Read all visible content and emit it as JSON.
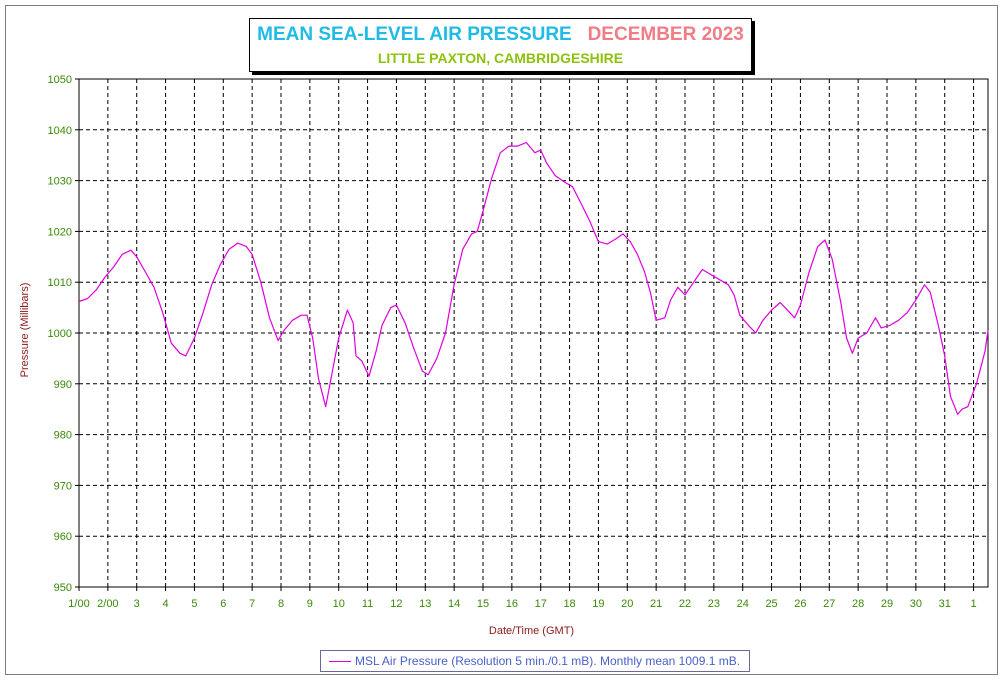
{
  "header": {
    "title": "MEAN SEA-LEVEL AIR PRESSURE",
    "month": "DECEMBER 2023",
    "subtitle": "LITTLE PAXTON, CAMBRIDGESHIRE"
  },
  "colors": {
    "title": "#1fbbe6",
    "month": "#f07c86",
    "subtitle": "#8cc20c",
    "axis_text": "#3a8a0a",
    "axis_title": "#8b1a1a",
    "series": "#e000e0",
    "grid": "#000000",
    "legend_text": "#4a60cc"
  },
  "chart_data": {
    "type": "line",
    "title": "MEAN SEA-LEVEL AIR PRESSURE  DECEMBER 2023",
    "xlabel": "Date/Time (GMT)",
    "ylabel": "Pressure (Millibars)",
    "ylim": [
      950,
      1050
    ],
    "xlim": [
      1,
      32.5
    ],
    "y_ticks": [
      950,
      960,
      970,
      980,
      990,
      1000,
      1010,
      1020,
      1030,
      1040,
      1050
    ],
    "x_ticks": [
      {
        "x": 1,
        "label": "1/00"
      },
      {
        "x": 2,
        "label": "2/00"
      },
      {
        "x": 3,
        "label": "3"
      },
      {
        "x": 4,
        "label": "4"
      },
      {
        "x": 5,
        "label": "5"
      },
      {
        "x": 6,
        "label": "6"
      },
      {
        "x": 7,
        "label": "7"
      },
      {
        "x": 8,
        "label": "8"
      },
      {
        "x": 9,
        "label": "9"
      },
      {
        "x": 10,
        "label": "10"
      },
      {
        "x": 11,
        "label": "11"
      },
      {
        "x": 12,
        "label": "12"
      },
      {
        "x": 13,
        "label": "13"
      },
      {
        "x": 14,
        "label": "14"
      },
      {
        "x": 15,
        "label": "15"
      },
      {
        "x": 16,
        "label": "16"
      },
      {
        "x": 17,
        "label": "17"
      },
      {
        "x": 18,
        "label": "18"
      },
      {
        "x": 19,
        "label": "19"
      },
      {
        "x": 20,
        "label": "20"
      },
      {
        "x": 21,
        "label": "21"
      },
      {
        "x": 22,
        "label": "22"
      },
      {
        "x": 23,
        "label": "23"
      },
      {
        "x": 24,
        "label": "24"
      },
      {
        "x": 25,
        "label": "25"
      },
      {
        "x": 26,
        "label": "26"
      },
      {
        "x": 27,
        "label": "27"
      },
      {
        "x": 28,
        "label": "28"
      },
      {
        "x": 29,
        "label": "29"
      },
      {
        "x": 30,
        "label": "30"
      },
      {
        "x": 31,
        "label": "31"
      },
      {
        "x": 32,
        "label": "1"
      }
    ],
    "grid": true,
    "legend_position": "bottom",
    "series": [
      {
        "name": "MSL Air Pressure (Resolution 5 min./0.1 mB). Monthly mean 1009.1 mB.",
        "points": [
          [
            1.0,
            1006.2
          ],
          [
            1.3,
            1006.8
          ],
          [
            1.6,
            1008.5
          ],
          [
            1.9,
            1011.0
          ],
          [
            2.2,
            1013.0
          ],
          [
            2.5,
            1015.5
          ],
          [
            2.8,
            1016.3
          ],
          [
            3.0,
            1015.0
          ],
          [
            3.3,
            1012.0
          ],
          [
            3.6,
            1009.0
          ],
          [
            3.9,
            1004.0
          ],
          [
            4.2,
            998.0
          ],
          [
            4.5,
            996.0
          ],
          [
            4.7,
            995.5
          ],
          [
            5.0,
            999.0
          ],
          [
            5.3,
            1004.0
          ],
          [
            5.6,
            1009.5
          ],
          [
            5.9,
            1013.5
          ],
          [
            6.2,
            1016.5
          ],
          [
            6.5,
            1017.7
          ],
          [
            6.8,
            1017.0
          ],
          [
            7.0,
            1015.5
          ],
          [
            7.3,
            1010.0
          ],
          [
            7.6,
            1003.0
          ],
          [
            7.9,
            998.5
          ],
          [
            8.1,
            1000.5
          ],
          [
            8.4,
            1002.5
          ],
          [
            8.7,
            1003.5
          ],
          [
            8.9,
            1003.5
          ],
          [
            9.1,
            999.0
          ],
          [
            9.3,
            991.0
          ],
          [
            9.55,
            985.5
          ],
          [
            9.8,
            993.0
          ],
          [
            10.0,
            999.0
          ],
          [
            10.3,
            1004.5
          ],
          [
            10.5,
            1002.0
          ],
          [
            10.6,
            995.5
          ],
          [
            10.8,
            994.5
          ],
          [
            11.05,
            991.5
          ],
          [
            11.3,
            996.5
          ],
          [
            11.5,
            1001.5
          ],
          [
            11.8,
            1005.0
          ],
          [
            12.0,
            1005.5
          ],
          [
            12.3,
            1002.0
          ],
          [
            12.6,
            997.0
          ],
          [
            12.9,
            992.5
          ],
          [
            13.1,
            991.8
          ],
          [
            13.4,
            995.0
          ],
          [
            13.7,
            1000.0
          ],
          [
            14.0,
            1009.5
          ],
          [
            14.3,
            1016.5
          ],
          [
            14.6,
            1019.5
          ],
          [
            14.8,
            1020.0
          ],
          [
            15.0,
            1024.0
          ],
          [
            15.3,
            1030.5
          ],
          [
            15.6,
            1035.5
          ],
          [
            15.9,
            1036.8
          ],
          [
            16.2,
            1036.8
          ],
          [
            16.5,
            1037.5
          ],
          [
            16.8,
            1035.5
          ],
          [
            17.0,
            1036.0
          ],
          [
            17.2,
            1033.5
          ],
          [
            17.5,
            1031.0
          ],
          [
            17.8,
            1029.8
          ],
          [
            18.1,
            1028.8
          ],
          [
            18.4,
            1025.5
          ],
          [
            18.7,
            1022.0
          ],
          [
            19.0,
            1018.0
          ],
          [
            19.3,
            1017.5
          ],
          [
            19.6,
            1018.5
          ],
          [
            19.85,
            1019.5
          ],
          [
            20.1,
            1018.0
          ],
          [
            20.35,
            1015.5
          ],
          [
            20.6,
            1012.0
          ],
          [
            20.8,
            1008.0
          ],
          [
            21.0,
            1002.5
          ],
          [
            21.3,
            1003.0
          ],
          [
            21.5,
            1006.5
          ],
          [
            21.75,
            1009.0
          ],
          [
            22.0,
            1007.5
          ],
          [
            22.3,
            1010.0
          ],
          [
            22.6,
            1012.5
          ],
          [
            22.9,
            1011.5
          ],
          [
            23.2,
            1010.5
          ],
          [
            23.5,
            1009.5
          ],
          [
            23.7,
            1007.5
          ],
          [
            23.9,
            1003.5
          ],
          [
            24.2,
            1001.5
          ],
          [
            24.45,
            1000.0
          ],
          [
            24.7,
            1002.5
          ],
          [
            25.0,
            1004.5
          ],
          [
            25.3,
            1006.0
          ],
          [
            25.55,
            1004.5
          ],
          [
            25.8,
            1003.0
          ],
          [
            26.0,
            1005.5
          ],
          [
            26.3,
            1012.0
          ],
          [
            26.6,
            1017.0
          ],
          [
            26.85,
            1018.3
          ],
          [
            27.1,
            1014.5
          ],
          [
            27.4,
            1006.0
          ],
          [
            27.6,
            999.0
          ],
          [
            27.8,
            996.0
          ],
          [
            28.0,
            999.0
          ],
          [
            28.3,
            1000.0
          ],
          [
            28.6,
            1003.0
          ],
          [
            28.8,
            1001.0
          ],
          [
            29.1,
            1001.5
          ],
          [
            29.4,
            1002.5
          ],
          [
            29.7,
            1004.0
          ],
          [
            30.0,
            1006.5
          ],
          [
            30.3,
            1009.5
          ],
          [
            30.5,
            1008.0
          ],
          [
            30.8,
            1001.0
          ],
          [
            31.0,
            995.5
          ],
          [
            31.2,
            987.5
          ],
          [
            31.45,
            984.0
          ],
          [
            31.6,
            985.0
          ],
          [
            31.8,
            985.5
          ],
          [
            32.1,
            990.0
          ],
          [
            32.4,
            996.5
          ],
          [
            32.5,
            1000.5
          ]
        ]
      }
    ]
  }
}
